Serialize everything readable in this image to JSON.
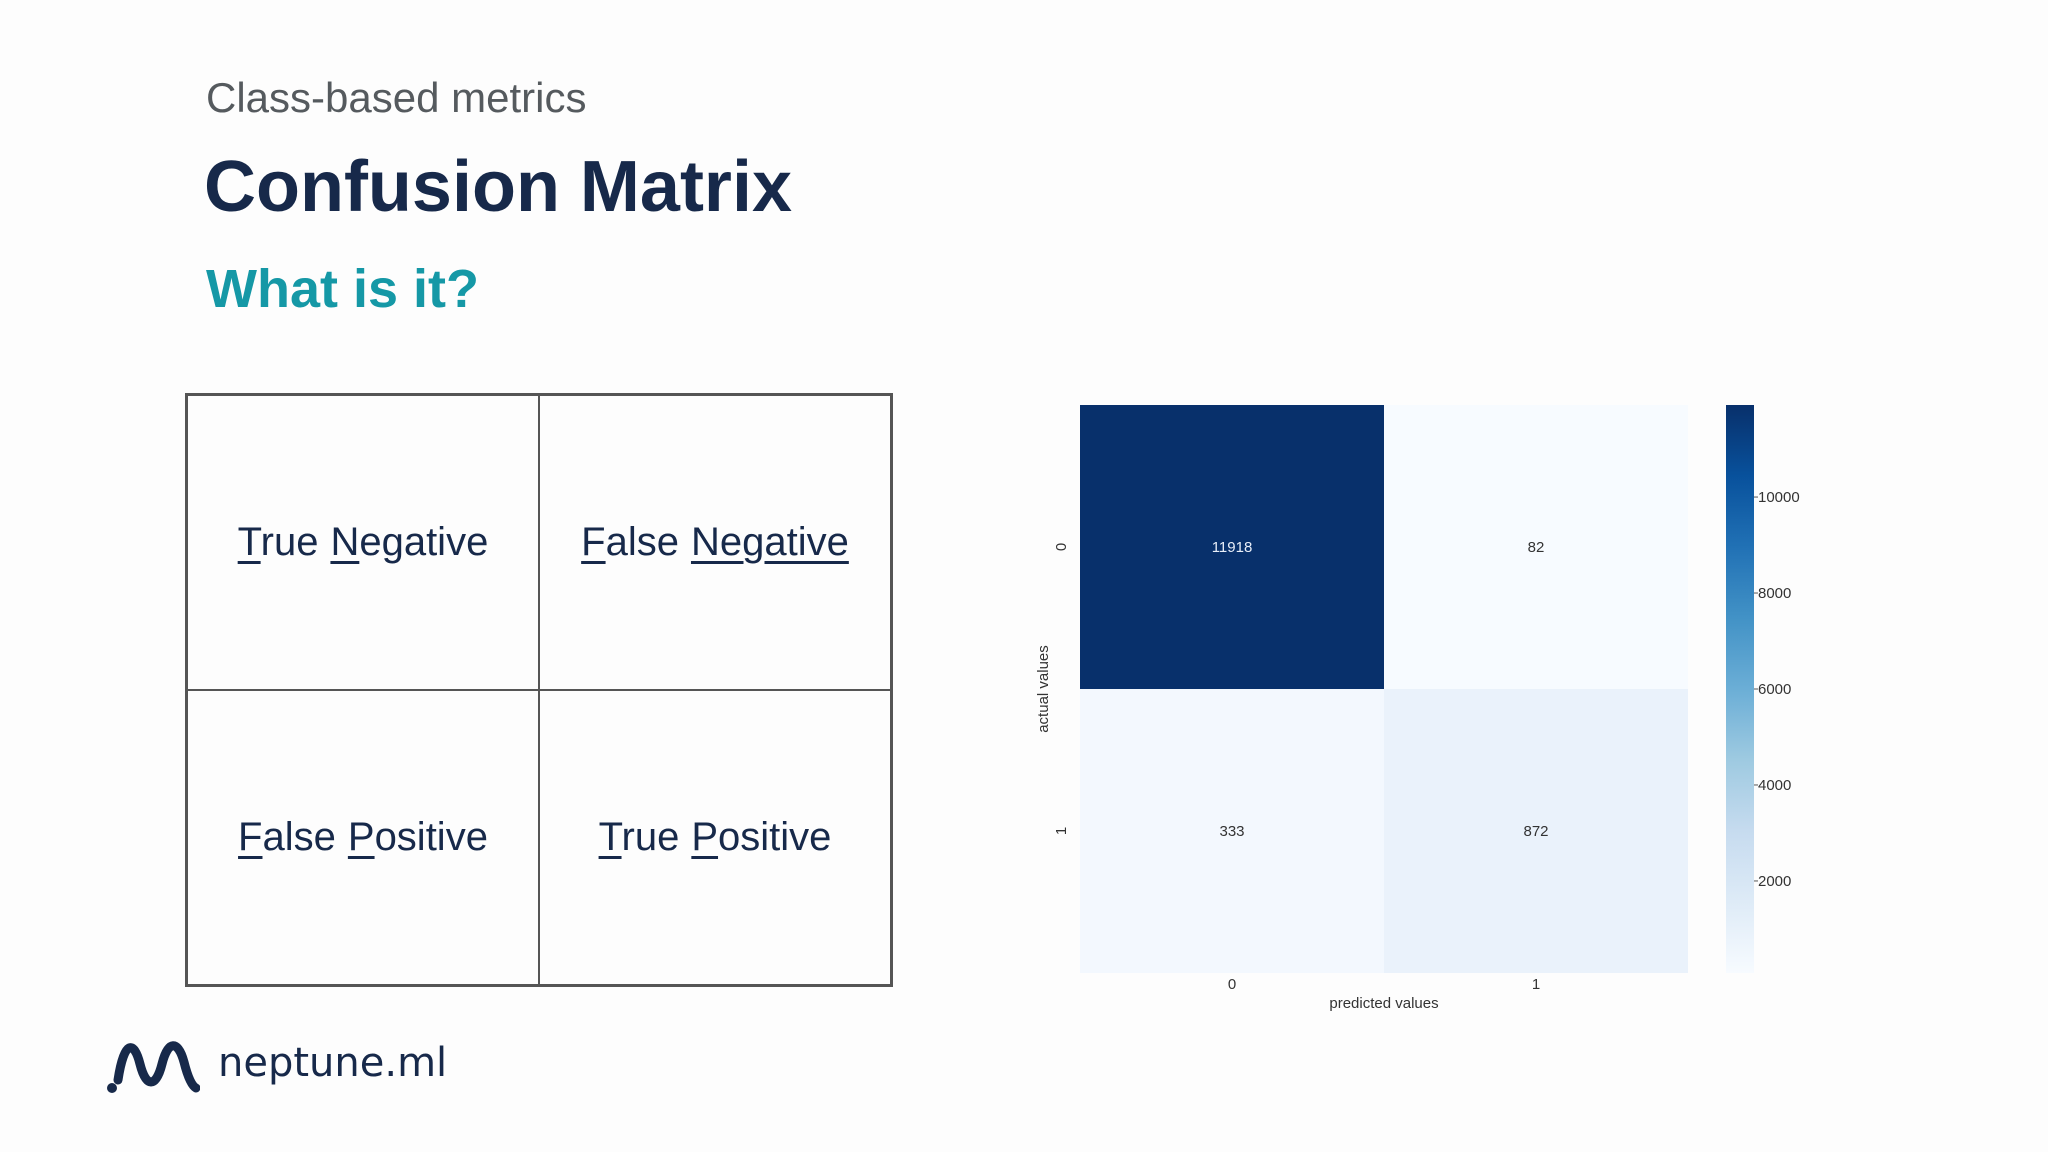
{
  "slide": {
    "kicker": "Class-based metrics",
    "title": "Confusion Matrix",
    "subtitle": "What is it?"
  },
  "matrix_table": {
    "cells": [
      {
        "words": [
          {
            "first": "T",
            "rest": "rue"
          },
          {
            "first": "N",
            "rest": "egative"
          }
        ]
      },
      {
        "words": [
          {
            "first": "F",
            "rest": "alse"
          },
          {
            "first": "Negative",
            "rest": "",
            "full_underline": true
          }
        ]
      },
      {
        "words": [
          {
            "first": "F",
            "rest": "alse"
          },
          {
            "first": "P",
            "rest": "ositive"
          }
        ]
      },
      {
        "words": [
          {
            "first": "T",
            "rest": "rue"
          },
          {
            "first": "P",
            "rest": "ositive"
          }
        ]
      }
    ]
  },
  "chart_data": {
    "type": "heatmap",
    "title": "",
    "xlabel": "predicted values",
    "ylabel": "actual values",
    "x_categories": [
      "0",
      "1"
    ],
    "y_categories": [
      "0",
      "1"
    ],
    "values": [
      [
        11918,
        82
      ],
      [
        333,
        872
      ]
    ],
    "colormap": "Blues",
    "colorbar": {
      "ticks": [
        2000,
        4000,
        6000,
        8000,
        10000
      ],
      "range": [
        82,
        11918
      ]
    },
    "colors": {
      "low": "#f7fbff",
      "mid": "#6baed6",
      "high": "#08306b"
    }
  },
  "brand": {
    "name": "neptune.ml",
    "logo_icon": "neptune-wave-icon",
    "color": "#17294a"
  }
}
